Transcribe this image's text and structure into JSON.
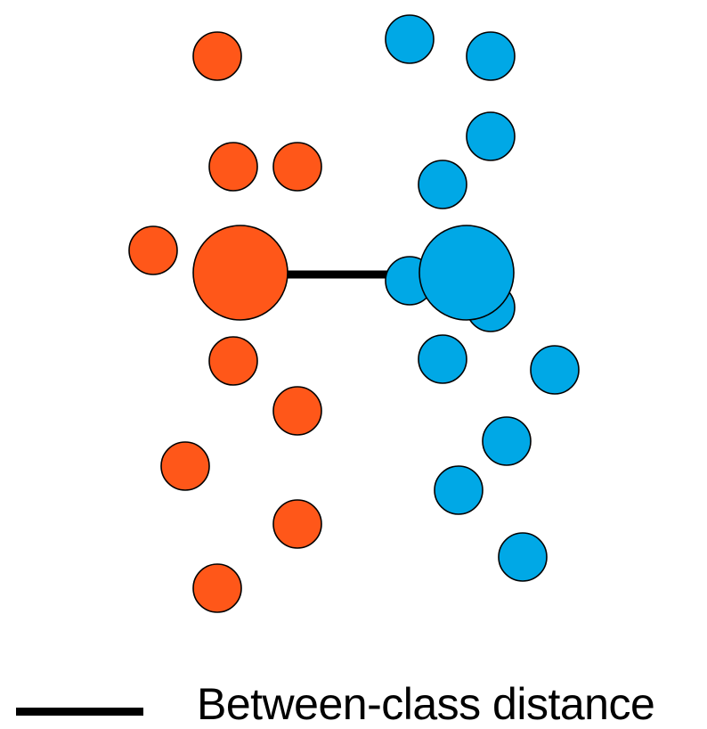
{
  "colors": {
    "class_a": "#FF5719",
    "class_b": "#00A8E6",
    "stroke": "#000000",
    "connector": "#000000"
  },
  "legend": {
    "label": "Between-class distance"
  }
}
